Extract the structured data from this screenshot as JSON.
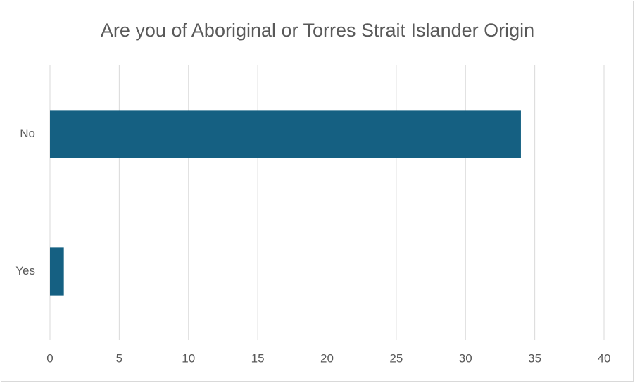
{
  "chart_data": {
    "type": "bar",
    "orientation": "horizontal",
    "title": "Are you of Aboriginal or Torres Strait Islander Origin",
    "categories": [
      "No",
      "Yes"
    ],
    "values": [
      34,
      1
    ],
    "color": "#156082",
    "xlim": [
      0,
      40
    ],
    "xticks": [
      0,
      5,
      10,
      15,
      20,
      25,
      30,
      35,
      40
    ],
    "grid": true
  }
}
